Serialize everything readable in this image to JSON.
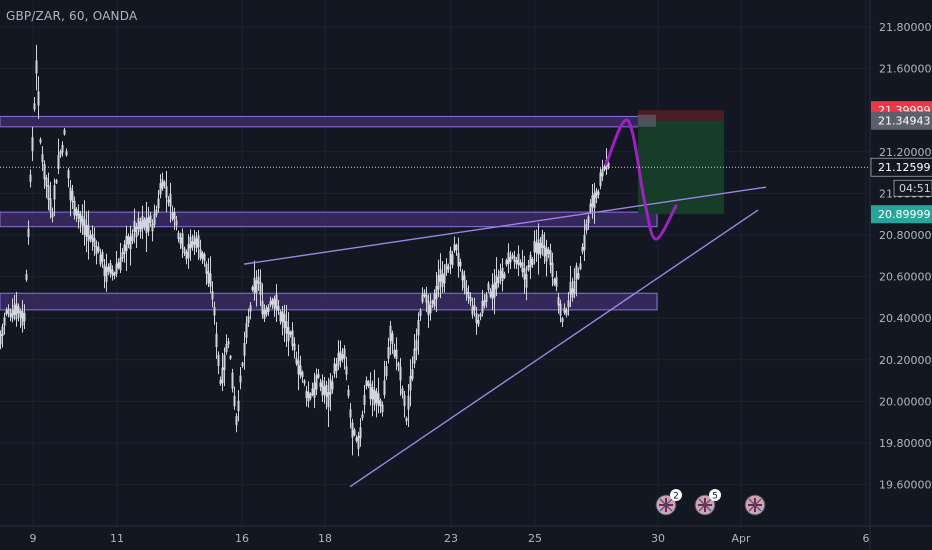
{
  "header": {
    "symbol": "GBP/ZAR, 60, OANDA"
  },
  "chart_data": {
    "type": "candlestick",
    "title": "GBP/ZAR, 60, OANDA",
    "xlabel": "",
    "ylabel": "",
    "ylim": [
      19.5,
      21.86
    ],
    "y_ticks": [
      "21.80000",
      "21.60000",
      "21.20000",
      "21.00000",
      "20.80000",
      "20.60000",
      "20.40000",
      "20.20000",
      "20.00000",
      "19.80000",
      "19.60000"
    ],
    "y_tick_values": [
      21.8,
      21.6,
      21.2,
      21.0,
      20.8,
      20.6,
      20.4,
      20.2,
      20.0,
      19.8,
      19.6
    ],
    "x_ticks": [
      "9",
      "11",
      "16",
      "18",
      "23",
      "25",
      "30",
      "Apr",
      "6"
    ],
    "price_path": [
      [
        0,
        20.3
      ],
      [
        6,
        20.42
      ],
      [
        16,
        20.45
      ],
      [
        24,
        20.4
      ],
      [
        30,
        21.05
      ],
      [
        36,
        21.62
      ],
      [
        40,
        21.25
      ],
      [
        46,
        21.05
      ],
      [
        52,
        20.92
      ],
      [
        58,
        21.15
      ],
      [
        64,
        21.28
      ],
      [
        70,
        21.0
      ],
      [
        78,
        20.9
      ],
      [
        86,
        20.82
      ],
      [
        96,
        20.75
      ],
      [
        106,
        20.62
      ],
      [
        114,
        20.62
      ],
      [
        124,
        20.72
      ],
      [
        134,
        20.82
      ],
      [
        144,
        20.85
      ],
      [
        154,
        20.86
      ],
      [
        162,
        21.07
      ],
      [
        170,
        20.95
      ],
      [
        178,
        20.82
      ],
      [
        186,
        20.72
      ],
      [
        196,
        20.78
      ],
      [
        204,
        20.68
      ],
      [
        212,
        20.52
      ],
      [
        220,
        20.1
      ],
      [
        228,
        20.3
      ],
      [
        236,
        19.92
      ],
      [
        244,
        20.25
      ],
      [
        252,
        20.52
      ],
      [
        258,
        20.58
      ],
      [
        264,
        20.42
      ],
      [
        272,
        20.5
      ],
      [
        282,
        20.4
      ],
      [
        292,
        20.28
      ],
      [
        300,
        20.15
      ],
      [
        308,
        20.02
      ],
      [
        318,
        20.1
      ],
      [
        328,
        20.02
      ],
      [
        336,
        20.18
      ],
      [
        344,
        20.22
      ],
      [
        352,
        19.85
      ],
      [
        358,
        19.78
      ],
      [
        366,
        20.1
      ],
      [
        374,
        20.02
      ],
      [
        382,
        19.98
      ],
      [
        390,
        20.32
      ],
      [
        398,
        20.18
      ],
      [
        406,
        19.92
      ],
      [
        414,
        20.22
      ],
      [
        422,
        20.52
      ],
      [
        430,
        20.42
      ],
      [
        438,
        20.58
      ],
      [
        446,
        20.62
      ],
      [
        456,
        20.75
      ],
      [
        462,
        20.58
      ],
      [
        470,
        20.48
      ],
      [
        478,
        20.38
      ],
      [
        486,
        20.52
      ],
      [
        494,
        20.55
      ],
      [
        502,
        20.6
      ],
      [
        510,
        20.7
      ],
      [
        518,
        20.66
      ],
      [
        526,
        20.6
      ],
      [
        534,
        20.72
      ],
      [
        542,
        20.76
      ],
      [
        550,
        20.7
      ],
      [
        556,
        20.55
      ],
      [
        562,
        20.38
      ],
      [
        570,
        20.52
      ],
      [
        578,
        20.62
      ],
      [
        584,
        20.78
      ],
      [
        590,
        20.92
      ],
      [
        596,
        21.0
      ],
      [
        604,
        21.1
      ],
      [
        608,
        21.16
      ]
    ],
    "horizontal_zones": [
      {
        "from": 21.32,
        "to": 21.37,
        "x_end": 656
      },
      {
        "from": 20.84,
        "to": 20.91,
        "x_end": 657
      },
      {
        "from": 20.44,
        "to": 20.52,
        "x_end": 657
      }
    ],
    "trendlines": [
      {
        "p1": [
          244,
          20.66
        ],
        "p2": [
          766,
          21.03
        ]
      },
      {
        "p1": [
          350,
          19.59
        ],
        "p2": [
          758,
          20.92
        ]
      }
    ],
    "position": {
      "x_start": 638,
      "x_end": 724,
      "stop_loss": 21.39999,
      "entry": 21.34943,
      "take_profit": 20.89999,
      "stop_color": "#4a1d24",
      "profit_color": "#163d27"
    },
    "projection": [
      [
        606,
        21.14
      ],
      [
        628,
        21.35
      ],
      [
        645,
        20.95
      ],
      [
        656,
        20.78
      ],
      [
        676,
        20.94
      ]
    ],
    "current_price": 21.12599,
    "countdown": "04:51",
    "price_labels": [
      {
        "text": "21.39999",
        "value": 21.39999,
        "color": "#f23645"
      },
      {
        "text": "21.34943",
        "value": 21.34943,
        "color": "#5d606b"
      },
      {
        "text": "21.12599",
        "value": 21.12599,
        "color": "#131722"
      },
      {
        "text": "20.89999",
        "value": 20.89999,
        "color": "#26a69a"
      }
    ],
    "event_markers": [
      {
        "x": 666,
        "badge": "2"
      },
      {
        "x": 705,
        "badge": "5"
      },
      {
        "x": 755,
        "badge": ""
      }
    ],
    "colors": {
      "background": "#131722",
      "zone_fill": "#3b2a63",
      "zone_stroke": "#8c73d8",
      "trendline": "#9c86e6",
      "projection": "#a020c0",
      "candles": "#d1d4dc",
      "axis_text": "#b2b5be",
      "grid": "#1e222d"
    }
  }
}
